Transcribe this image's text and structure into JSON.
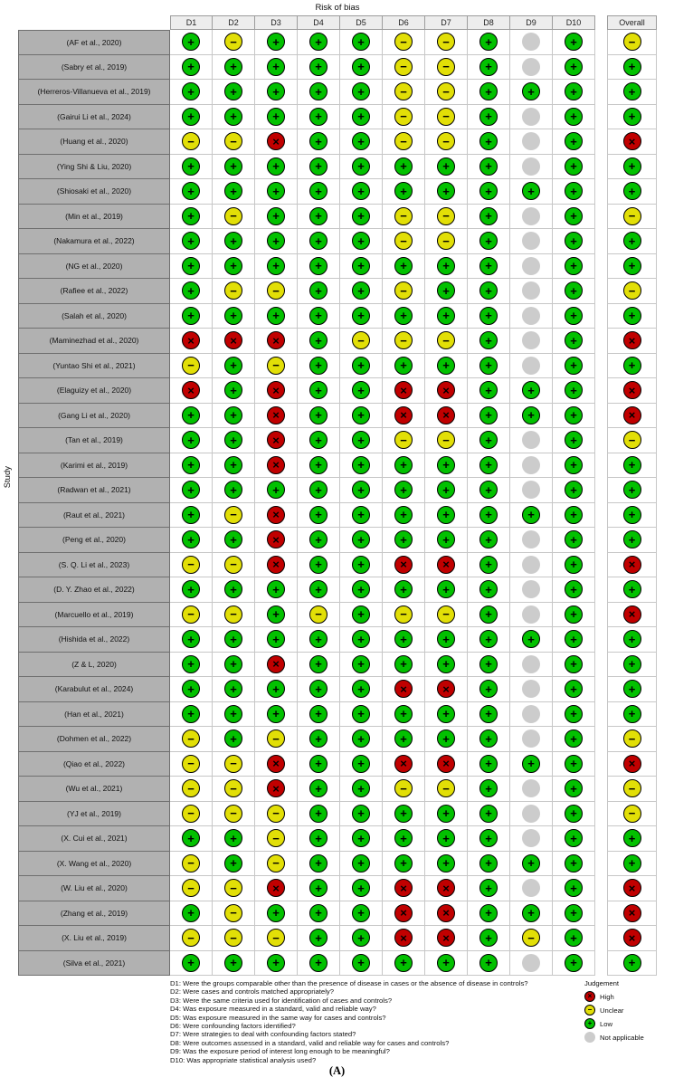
{
  "title": "Risk of bias",
  "ylabel": "Study",
  "caption": "(A)",
  "judgment_styles": {
    "H": {
      "name": "high",
      "color": "#c00000",
      "symbol": "×"
    },
    "U": {
      "name": "unclear",
      "color": "#e2df07",
      "symbol": "−"
    },
    "L": {
      "name": "low",
      "color": "#02c100",
      "symbol": "+"
    },
    "N": {
      "name": "not-applicable",
      "color": "#cccccc",
      "symbol": ""
    }
  },
  "legend": {
    "title": "Judgement",
    "items": [
      {
        "label": "High",
        "code": "H"
      },
      {
        "label": "Unclear",
        "code": "U"
      },
      {
        "label": "Low",
        "code": "L"
      },
      {
        "label": "Not applicable",
        "code": "N"
      }
    ]
  },
  "footnotes": [
    "D1: Were the groups comparable other than the presence of disease in cases or the absence of disease in controls?",
    "D2: Were cases and controls matched appropriately?",
    "D3: Were the same criteria used for identification of cases and controls?",
    "D4: Was exposure measured in a standard, valid and reliable way?",
    "D5: Was exposure measured in the same way for cases and controls?",
    "D6: Were confounding factors identified?",
    "D7: Were strategies to deal with confounding factors stated?",
    "D8: Were outcomes assessed in a standard, valid and reliable way for cases and controls?",
    "D9: Was the exposure period of interest long enough to be meaningful?",
    "D10: Was appropriate statistical analysis used?"
  ],
  "chart_data": {
    "type": "heatmap",
    "subtype": "risk-of-bias-traffic-light",
    "title": "Risk of bias",
    "ylabel": "Study",
    "columns": [
      "D1",
      "D2",
      "D3",
      "D4",
      "D5",
      "D6",
      "D7",
      "D8",
      "D9",
      "D10",
      "Overall"
    ],
    "legend_codes": {
      "H": "High",
      "U": "Unclear",
      "L": "Low",
      "N": "Not applicable"
    },
    "studies": [
      "(AF et al., 2020)",
      "(Sabry et al., 2019)",
      "(Herreros-Villanueva et al., 2019)",
      "(Gairui Li et al., 2024)",
      "(Huang et al., 2020)",
      "(Ying Shi & Liu, 2020)",
      "(Shiosaki et al., 2020)",
      "(Min et al., 2019)",
      "(Nakamura et al., 2022)",
      "(NG et al., 2020)",
      "(Rafiee et al., 2022)",
      "(Salah et al., 2020)",
      "(Maminezhad et al., 2020)",
      "(Yuntao Shi et al., 2021)",
      "(Elaguizy et al., 2020)",
      "(Gang Li et al., 2020)",
      "(Tan et al., 2019)",
      "(Karimi et al., 2019)",
      "(Radwan et al., 2021)",
      "(Raut et al., 2021)",
      "(Peng et al., 2020)",
      "(S. Q. Li et al., 2023)",
      "(D. Y. Zhao et al., 2022)",
      "(Marcuello et al., 2019)",
      "(Hishida et al., 2022)",
      "(Z & L, 2020)",
      "(Karabulut et al., 2024)",
      "(Han et al., 2021)",
      "(Dohmen et al., 2022)",
      "(Qiao et al., 2022)",
      "(Wu et al., 2021)",
      "(YJ et al., 2019)",
      "(X. Cui et al., 2021)",
      "(X. Wang et al., 2020)",
      "(W. Liu et al., 2020)",
      "(Zhang et al., 2019)",
      "(X. Liu et al., 2019)",
      "(Silva et al., 2021)"
    ],
    "judgments": [
      [
        "L",
        "U",
        "L",
        "L",
        "L",
        "U",
        "U",
        "L",
        "N",
        "L",
        "U"
      ],
      [
        "L",
        "L",
        "L",
        "L",
        "L",
        "U",
        "U",
        "L",
        "N",
        "L",
        "L"
      ],
      [
        "L",
        "L",
        "L",
        "L",
        "L",
        "U",
        "U",
        "L",
        "L",
        "L",
        "L"
      ],
      [
        "L",
        "L",
        "L",
        "L",
        "L",
        "U",
        "U",
        "L",
        "N",
        "L",
        "L"
      ],
      [
        "U",
        "U",
        "H",
        "L",
        "L",
        "U",
        "U",
        "L",
        "N",
        "L",
        "H"
      ],
      [
        "L",
        "L",
        "L",
        "L",
        "L",
        "L",
        "L",
        "L",
        "N",
        "L",
        "L"
      ],
      [
        "L",
        "L",
        "L",
        "L",
        "L",
        "L",
        "L",
        "L",
        "L",
        "L",
        "L"
      ],
      [
        "L",
        "U",
        "L",
        "L",
        "L",
        "U",
        "U",
        "L",
        "N",
        "L",
        "U"
      ],
      [
        "L",
        "L",
        "L",
        "L",
        "L",
        "U",
        "U",
        "L",
        "N",
        "L",
        "L"
      ],
      [
        "L",
        "L",
        "L",
        "L",
        "L",
        "L",
        "L",
        "L",
        "N",
        "L",
        "L"
      ],
      [
        "L",
        "U",
        "U",
        "L",
        "L",
        "U",
        "L",
        "L",
        "N",
        "L",
        "U"
      ],
      [
        "L",
        "L",
        "L",
        "L",
        "L",
        "L",
        "L",
        "L",
        "N",
        "L",
        "L"
      ],
      [
        "H",
        "H",
        "H",
        "L",
        "U",
        "U",
        "U",
        "L",
        "N",
        "L",
        "H"
      ],
      [
        "U",
        "L",
        "U",
        "L",
        "L",
        "L",
        "L",
        "L",
        "N",
        "L",
        "L"
      ],
      [
        "H",
        "L",
        "H",
        "L",
        "L",
        "H",
        "H",
        "L",
        "L",
        "L",
        "H"
      ],
      [
        "L",
        "L",
        "H",
        "L",
        "L",
        "H",
        "H",
        "L",
        "L",
        "L",
        "H"
      ],
      [
        "L",
        "L",
        "H",
        "L",
        "L",
        "U",
        "U",
        "L",
        "N",
        "L",
        "U"
      ],
      [
        "L",
        "L",
        "H",
        "L",
        "L",
        "L",
        "L",
        "L",
        "N",
        "L",
        "L"
      ],
      [
        "L",
        "L",
        "L",
        "L",
        "L",
        "L",
        "L",
        "L",
        "N",
        "L",
        "L"
      ],
      [
        "L",
        "U",
        "H",
        "L",
        "L",
        "L",
        "L",
        "L",
        "L",
        "L",
        "L"
      ],
      [
        "L",
        "L",
        "H",
        "L",
        "L",
        "L",
        "L",
        "L",
        "N",
        "L",
        "L"
      ],
      [
        "U",
        "U",
        "H",
        "L",
        "L",
        "H",
        "H",
        "L",
        "N",
        "L",
        "H"
      ],
      [
        "L",
        "L",
        "L",
        "L",
        "L",
        "L",
        "L",
        "L",
        "N",
        "L",
        "L"
      ],
      [
        "U",
        "U",
        "L",
        "U",
        "L",
        "U",
        "U",
        "L",
        "N",
        "L",
        "H"
      ],
      [
        "L",
        "L",
        "L",
        "L",
        "L",
        "L",
        "L",
        "L",
        "L",
        "L",
        "L"
      ],
      [
        "L",
        "L",
        "H",
        "L",
        "L",
        "L",
        "L",
        "L",
        "N",
        "L",
        "L"
      ],
      [
        "L",
        "L",
        "L",
        "L",
        "L",
        "H",
        "H",
        "L",
        "N",
        "L",
        "L"
      ],
      [
        "L",
        "L",
        "L",
        "L",
        "L",
        "L",
        "L",
        "L",
        "N",
        "L",
        "L"
      ],
      [
        "U",
        "L",
        "U",
        "L",
        "L",
        "L",
        "L",
        "L",
        "N",
        "L",
        "U"
      ],
      [
        "U",
        "U",
        "H",
        "L",
        "L",
        "H",
        "H",
        "L",
        "L",
        "L",
        "H"
      ],
      [
        "U",
        "U",
        "H",
        "L",
        "L",
        "U",
        "U",
        "L",
        "N",
        "L",
        "U"
      ],
      [
        "U",
        "U",
        "U",
        "L",
        "L",
        "L",
        "L",
        "L",
        "N",
        "L",
        "U"
      ],
      [
        "L",
        "L",
        "U",
        "L",
        "L",
        "L",
        "L",
        "L",
        "N",
        "L",
        "L"
      ],
      [
        "U",
        "L",
        "U",
        "L",
        "L",
        "L",
        "L",
        "L",
        "L",
        "L",
        "L"
      ],
      [
        "U",
        "U",
        "H",
        "L",
        "L",
        "H",
        "H",
        "L",
        "N",
        "L",
        "H"
      ],
      [
        "L",
        "U",
        "L",
        "L",
        "L",
        "H",
        "H",
        "L",
        "L",
        "L",
        "H"
      ],
      [
        "U",
        "U",
        "U",
        "L",
        "L",
        "H",
        "H",
        "L",
        "U",
        "L",
        "H"
      ],
      [
        "L",
        "L",
        "L",
        "L",
        "L",
        "L",
        "L",
        "L",
        "N",
        "L",
        "L"
      ]
    ]
  }
}
